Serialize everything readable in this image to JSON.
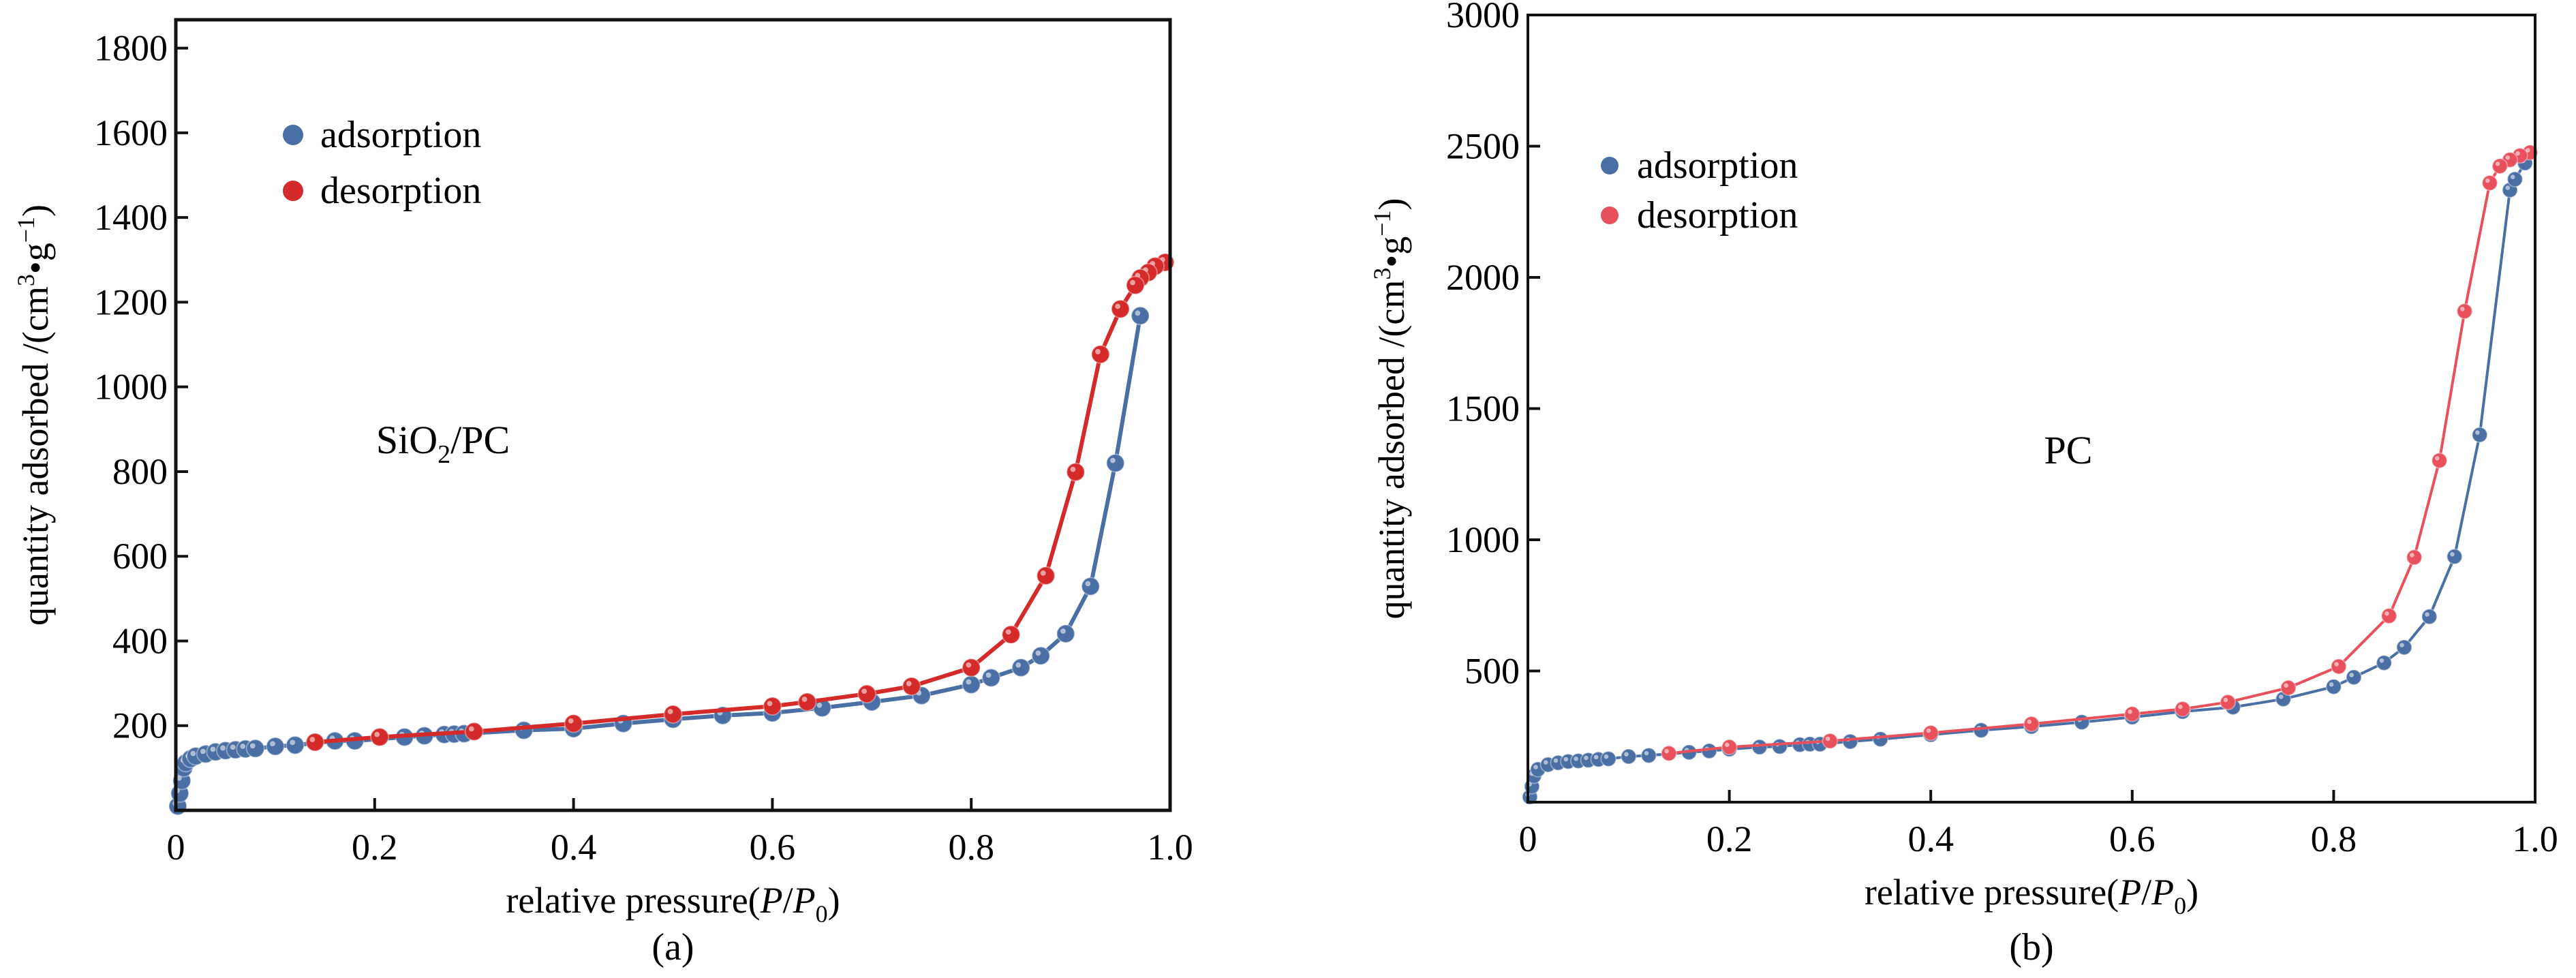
{
  "chart_data": [
    {
      "id": "a",
      "type": "line",
      "panel_label": "(a)",
      "annotation": {
        "base": "SiO",
        "sub": "2",
        "rest": "/PC"
      },
      "xlabel": {
        "main": "relative pressure(",
        "p": "P",
        "slash": "/",
        "p0": "P",
        "sub0": "0",
        "close": ")"
      },
      "ylabel": {
        "main": "quantity adsorbed /(cm",
        "sup3": "3",
        "dot": "•",
        "g": "g",
        "supm1": "−1",
        "close": ")"
      },
      "xlim": [
        0,
        1.0
      ],
      "ylim": [
        0,
        1867
      ],
      "xticks": [
        0,
        0.2,
        0.4,
        0.6,
        0.8,
        1.0
      ],
      "xtick_labels": [
        "0",
        "0.2",
        "0.4",
        "0.6",
        "0.8",
        "1.0"
      ],
      "yticks": [
        200,
        400,
        600,
        800,
        1000,
        1200,
        1400,
        1600,
        1800
      ],
      "ytick_labels": [
        "200",
        "400",
        "600",
        "800",
        "1000",
        "1200",
        "1400",
        "1600",
        "1800"
      ],
      "legend": {
        "position": "top-left",
        "entries": [
          "adsorption",
          "desorption"
        ]
      },
      "series": [
        {
          "name": "adsorption",
          "color": "#4a6fa5",
          "x": [
            0.002,
            0.004,
            0.006,
            0.008,
            0.01,
            0.015,
            0.02,
            0.03,
            0.04,
            0.05,
            0.06,
            0.07,
            0.08,
            0.1,
            0.12,
            0.16,
            0.18,
            0.23,
            0.25,
            0.27,
            0.28,
            0.29,
            0.35,
            0.4,
            0.45,
            0.5,
            0.55,
            0.6,
            0.65,
            0.7,
            0.75,
            0.8,
            0.82,
            0.85,
            0.87,
            0.895,
            0.92,
            0.945,
            0.97
          ],
          "y": [
            10,
            40,
            70,
            100,
            112,
            122,
            128,
            133,
            138,
            141,
            143,
            145,
            146,
            151,
            154,
            164,
            164,
            173,
            176,
            179,
            180,
            181,
            189,
            193,
            205,
            215,
            224,
            230,
            242,
            256,
            271,
            297,
            313,
            337,
            365,
            417,
            529,
            820,
            1168
          ]
        },
        {
          "name": "desorption",
          "color": "#d42a2a",
          "x": [
            0.995,
            0.985,
            0.978,
            0.97,
            0.965,
            0.95,
            0.93,
            0.905,
            0.875,
            0.84,
            0.8,
            0.74,
            0.695,
            0.635,
            0.6,
            0.5,
            0.4,
            0.3,
            0.205,
            0.14
          ],
          "y": [
            1294,
            1285,
            1270,
            1257,
            1240,
            1184,
            1077,
            799,
            554,
            415,
            337,
            293,
            275,
            256,
            246,
            227,
            205,
            186,
            173,
            161
          ]
        }
      ]
    },
    {
      "id": "b",
      "type": "line",
      "panel_label": "(b)",
      "annotation": {
        "base": "PC",
        "sub": "",
        "rest": ""
      },
      "xlabel": {
        "main": "relative pressure(",
        "p": "P",
        "slash": "/",
        "p0": "P",
        "sub0": "0",
        "close": ")"
      },
      "ylabel": {
        "main": "quantity adsorbed /(cm",
        "sup3": "3",
        "dot": "•",
        "g": "g",
        "supm1": "−1",
        "close": ")"
      },
      "xlim": [
        0,
        1.0
      ],
      "ylim": [
        0,
        3000
      ],
      "xticks": [
        0,
        0.2,
        0.4,
        0.6,
        0.8,
        1.0
      ],
      "xtick_labels": [
        "0",
        "0.2",
        "0.4",
        "0.6",
        "0.8",
        "1.0"
      ],
      "yticks": [
        500,
        1000,
        1500,
        2000,
        2500,
        3000
      ],
      "ytick_labels": [
        "500",
        "1000",
        "1500",
        "2000",
        "2500",
        "3000"
      ],
      "legend": {
        "position": "top-left",
        "entries": [
          "adsorption",
          "desorption"
        ]
      },
      "series": [
        {
          "name": "adsorption",
          "color": "#4a6fa5",
          "x": [
            0.002,
            0.004,
            0.006,
            0.01,
            0.02,
            0.03,
            0.04,
            0.05,
            0.06,
            0.07,
            0.08,
            0.1,
            0.12,
            0.16,
            0.18,
            0.2,
            0.23,
            0.25,
            0.27,
            0.28,
            0.29,
            0.32,
            0.35,
            0.4,
            0.45,
            0.5,
            0.55,
            0.6,
            0.65,
            0.7,
            0.75,
            0.8,
            0.82,
            0.85,
            0.87,
            0.895,
            0.92,
            0.945,
            0.975,
            0.98,
            0.99
          ],
          "y": [
            20,
            60,
            100,
            125,
            143,
            150,
            155,
            157,
            160,
            163,
            165,
            174,
            178,
            190,
            195,
            202,
            210,
            212,
            219,
            221,
            221,
            231,
            240,
            257,
            274,
            288,
            305,
            324,
            345,
            362,
            393,
            440,
            476,
            531,
            590,
            707,
            936,
            1400,
            2333,
            2374,
            2436
          ]
        },
        {
          "name": "desorption",
          "color": "#e8505b",
          "x": [
            0.995,
            0.985,
            0.975,
            0.965,
            0.955,
            0.93,
            0.905,
            0.88,
            0.855,
            0.805,
            0.755,
            0.695,
            0.65,
            0.6,
            0.5,
            0.4,
            0.3,
            0.2,
            0.14
          ],
          "y": [
            2476,
            2464,
            2448,
            2424,
            2360,
            1871,
            1302,
            933,
            710,
            517,
            436,
            381,
            355,
            336,
            298,
            264,
            233,
            210,
            186
          ]
        }
      ]
    }
  ]
}
